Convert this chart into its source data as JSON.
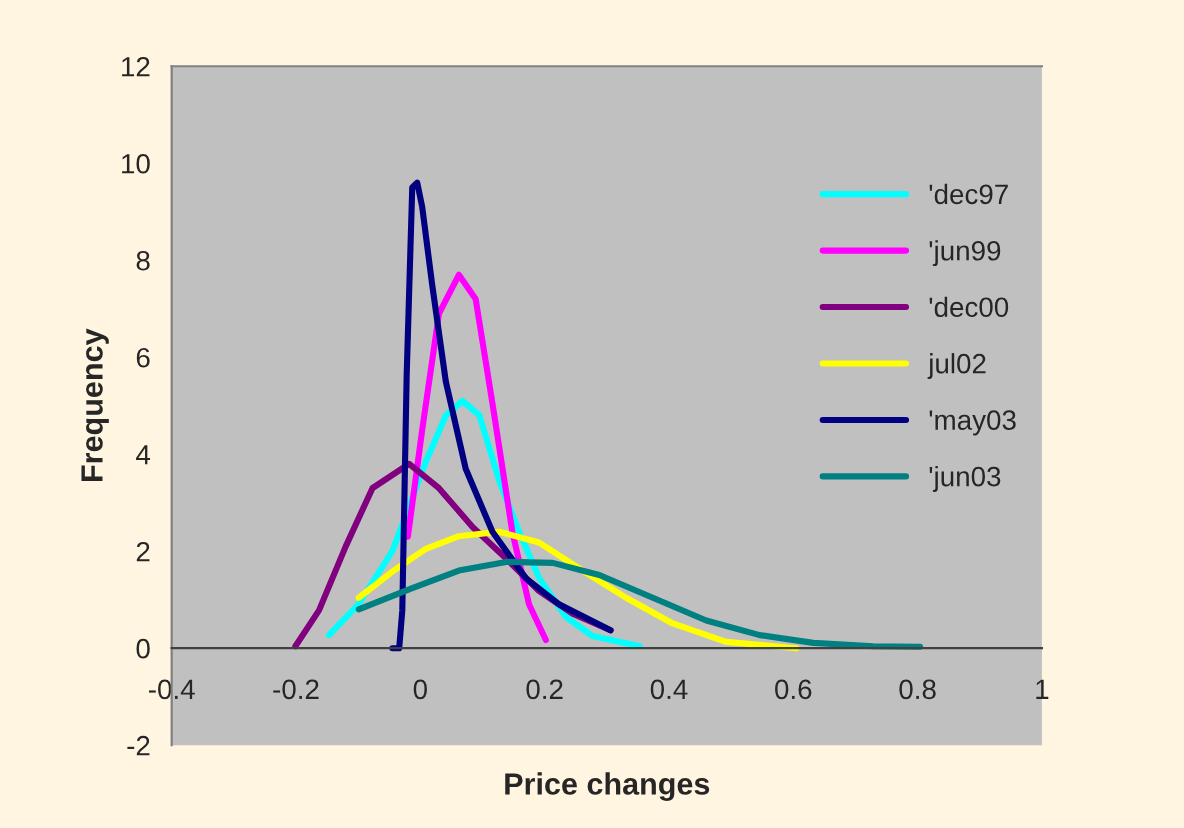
{
  "chart_data": {
    "type": "line",
    "xlabel": "Price changes",
    "ylabel": "Frequency",
    "xlim": [
      -0.4,
      1
    ],
    "xticks": [
      {
        "value": -0.4,
        "label": "-0.4"
      },
      {
        "value": -0.2,
        "label": "-0.2"
      },
      0,
      0.2,
      0.4,
      0.6,
      0.8,
      1
    ],
    "ylim": [
      -2,
      12
    ],
    "yticks": [
      {
        "value": -2,
        "label": "-2"
      },
      0,
      2,
      4,
      6,
      8,
      10,
      12
    ],
    "grid": false,
    "legend": "right",
    "marker": "none",
    "line_style": "solid",
    "series": [
      {
        "name": "'dec97",
        "color": "#00ffff",
        "x": [
          -0.147,
          -0.1,
          -0.045,
          0.009,
          0.041,
          0.068,
          0.095,
          0.127,
          0.159,
          0.191,
          0.234,
          0.277,
          0.353
        ],
        "values": [
          0.27,
          0.9,
          2.0,
          3.85,
          4.8,
          5.1,
          4.8,
          3.45,
          2.4,
          1.45,
          0.65,
          0.25,
          0.04
        ]
      },
      {
        "name": "'jun99",
        "color": "#ff00ff",
        "x": [
          -0.02,
          0.003,
          0.03,
          0.062,
          0.089,
          0.116,
          0.148,
          0.175,
          0.202
        ],
        "values": [
          2.3,
          4.5,
          6.9,
          7.7,
          7.2,
          5.05,
          2.4,
          0.9,
          0.17
        ]
      },
      {
        "name": "'dec00",
        "color": "#800080",
        "x": [
          -0.201,
          -0.163,
          -0.12,
          -0.077,
          -0.018,
          0.03,
          0.084,
          0.138,
          0.191,
          0.245,
          0.306
        ],
        "values": [
          0.04,
          0.78,
          2.1,
          3.3,
          3.8,
          3.3,
          2.5,
          1.85,
          1.18,
          0.71,
          0.37
        ]
      },
      {
        "name": "jul02",
        "color": "#ffff00",
        "x": [
          -0.099,
          -0.045,
          0.009,
          0.062,
          0.127,
          0.191,
          0.256,
          0.331,
          0.406,
          0.492,
          0.605
        ],
        "values": [
          1.04,
          1.58,
          2.05,
          2.31,
          2.4,
          2.18,
          1.64,
          1.04,
          0.51,
          0.13,
          0.0
        ]
      },
      {
        "name": "'may03",
        "color": "#000080",
        "x": [
          -0.045,
          -0.034,
          -0.029,
          -0.022,
          -0.013,
          -0.005,
          0.003,
          0.019,
          0.041,
          0.073,
          0.116,
          0.17,
          0.224,
          0.306
        ],
        "values": [
          0.0,
          0.0,
          0.78,
          5.6,
          9.5,
          9.6,
          9.1,
          7.5,
          5.5,
          3.7,
          2.4,
          1.44,
          0.9,
          0.37
        ]
      },
      {
        "name": "'jun03",
        "color": "#008080",
        "x": [
          -0.099,
          -0.013,
          0.062,
          0.138,
          0.213,
          0.288,
          0.374,
          0.46,
          0.546,
          0.632,
          0.729,
          0.804
        ],
        "values": [
          0.8,
          1.24,
          1.6,
          1.78,
          1.76,
          1.51,
          1.04,
          0.57,
          0.27,
          0.11,
          0.04,
          0.03
        ]
      }
    ]
  }
}
